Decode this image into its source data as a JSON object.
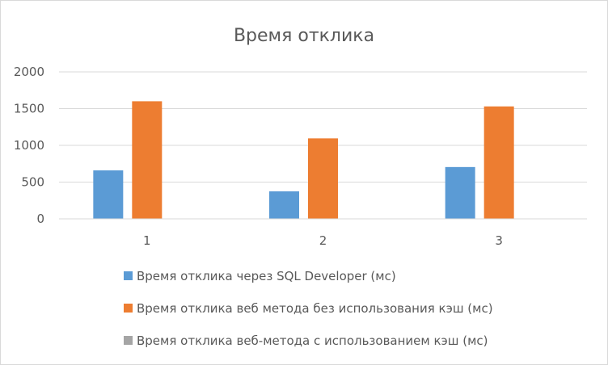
{
  "chart_data": {
    "type": "bar",
    "title": "Время отклика",
    "xlabel": "",
    "ylabel": "",
    "ylim": [
      0,
      2000
    ],
    "yticks": [
      0,
      500,
      1000,
      1500,
      2000
    ],
    "categories": [
      "1",
      "2",
      "3"
    ],
    "grid": true,
    "legend_position": "bottom",
    "series": [
      {
        "name": "Время отклика через SQL Developer (мс)",
        "color": "#5B9BD5",
        "values": [
          660,
          375,
          705
        ]
      },
      {
        "name": "Время отклика веб метода без использования кэш (мс)",
        "color": "#ED7D31",
        "values": [
          1600,
          1095,
          1530
        ]
      },
      {
        "name": "Время отклика веб-метода с использованием кэш (мс)",
        "color": "#A5A5A5",
        "values": [
          0,
          0,
          0
        ]
      }
    ]
  }
}
